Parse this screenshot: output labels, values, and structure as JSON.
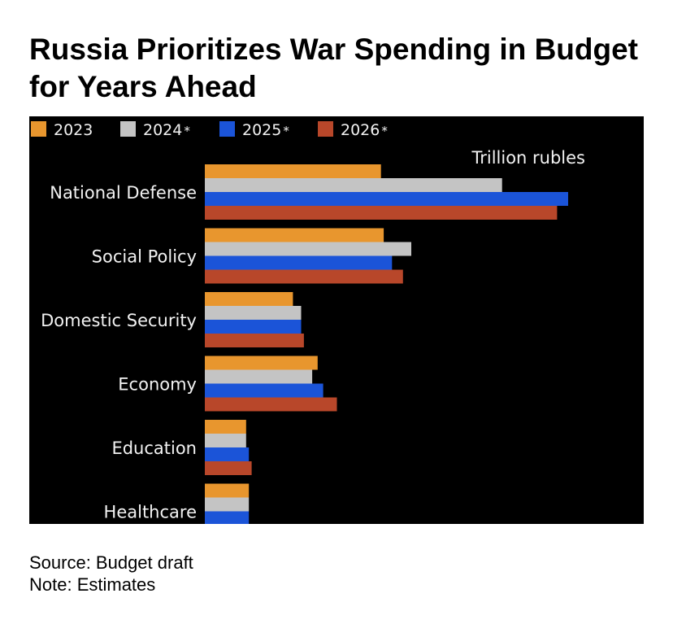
{
  "title": "Russia Prioritizes War Spending in Budget for Years Ahead",
  "source_text": "Source: Budget draft",
  "note_text": "Note: Estimates",
  "chart_data": {
    "type": "bar",
    "orientation": "horizontal",
    "unit_label": "Trillion rubles",
    "categories": [
      "National Defense",
      "Social Policy",
      "Domestic Security",
      "Economy",
      "Education",
      "Healthcare"
    ],
    "series": [
      {
        "name": "2023",
        "marker": "",
        "color": "#e8962e",
        "values": [
          6.4,
          6.5,
          3.2,
          4.1,
          1.5,
          1.6
        ]
      },
      {
        "name": "2024",
        "marker": "*",
        "color": "#c4c4c4",
        "values": [
          10.8,
          7.5,
          3.5,
          3.9,
          1.5,
          1.6
        ]
      },
      {
        "name": "2025",
        "marker": "*",
        "color": "#1b54d8",
        "values": [
          13.2,
          6.8,
          3.5,
          4.3,
          1.6,
          1.6
        ]
      },
      {
        "name": "2026",
        "marker": "*",
        "color": "#b8472a",
        "values": [
          12.8,
          7.2,
          3.6,
          4.8,
          1.7,
          1.6
        ]
      }
    ],
    "xlim": [
      0,
      15.8
    ],
    "grid": false,
    "legend": "top-left"
  }
}
